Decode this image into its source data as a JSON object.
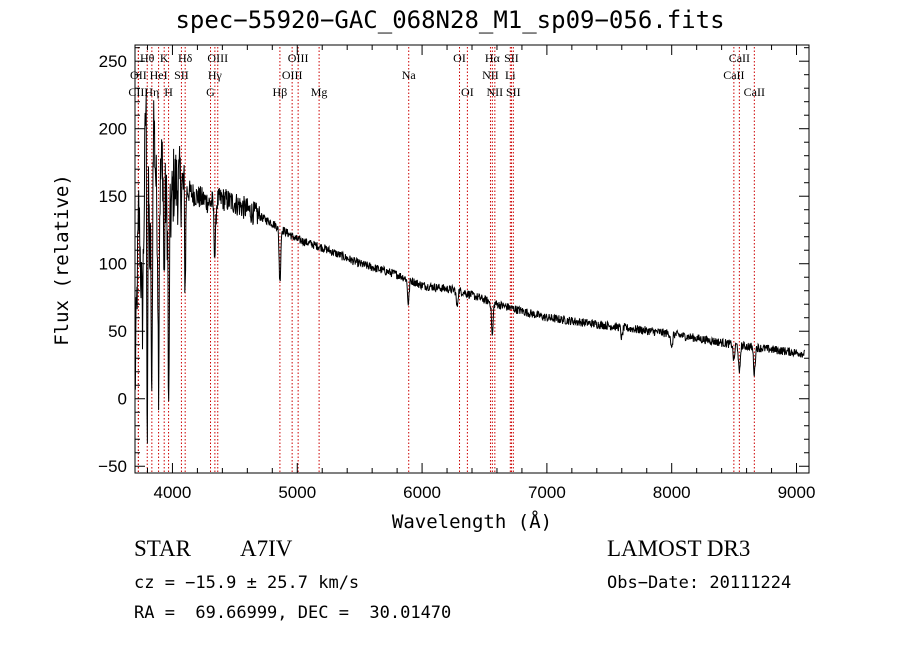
{
  "chart_data": {
    "type": "line",
    "title": "spec−55920−GAC_068N28_M1_sp09−056.fits",
    "xlabel": "Wavelength (Å)",
    "ylabel": "Flux (relative)",
    "xlim": [
      3700,
      9100
    ],
    "ylim": [
      -55,
      262
    ],
    "xticks": [
      4000,
      5000,
      6000,
      7000,
      8000,
      9000
    ],
    "yticks": [
      -50,
      0,
      50,
      100,
      150,
      200,
      250
    ],
    "xtick_labels": [
      "4000",
      "5000",
      "6000",
      "7000",
      "8000",
      "9000"
    ],
    "ytick_labels": [
      "−50",
      "0",
      "50",
      "100",
      "150",
      "200",
      "250"
    ],
    "line_color": "#000000",
    "marker_color": "#cc0000",
    "spectrum_anchor_points": [
      {
        "x": 3700,
        "y": 5
      },
      {
        "x": 3730,
        "y": 140
      },
      {
        "x": 3760,
        "y": 60
      },
      {
        "x": 3790,
        "y": 245
      },
      {
        "x": 3820,
        "y": 100
      },
      {
        "x": 3850,
        "y": 210
      },
      {
        "x": 3880,
        "y": 130
      },
      {
        "x": 3920,
        "y": 180
      },
      {
        "x": 3970,
        "y": 120
      },
      {
        "x": 4010,
        "y": 160
      },
      {
        "x": 4100,
        "y": 155
      },
      {
        "x": 4200,
        "y": 150
      },
      {
        "x": 4300,
        "y": 145
      },
      {
        "x": 4400,
        "y": 148
      },
      {
        "x": 4500,
        "y": 145
      },
      {
        "x": 4600,
        "y": 140
      },
      {
        "x": 4800,
        "y": 130
      },
      {
        "x": 5000,
        "y": 118
      },
      {
        "x": 5200,
        "y": 112
      },
      {
        "x": 5500,
        "y": 100
      },
      {
        "x": 5800,
        "y": 92
      },
      {
        "x": 6000,
        "y": 84
      },
      {
        "x": 6300,
        "y": 80
      },
      {
        "x": 6600,
        "y": 70
      },
      {
        "x": 7000,
        "y": 60
      },
      {
        "x": 7500,
        "y": 54
      },
      {
        "x": 8000,
        "y": 48
      },
      {
        "x": 8500,
        "y": 40
      },
      {
        "x": 9100,
        "y": 33
      }
    ],
    "absorption_features": [
      {
        "x": 3798,
        "depth": 230
      },
      {
        "x": 3835,
        "depth": 170
      },
      {
        "x": 3889,
        "depth": 120
      },
      {
        "x": 3933,
        "depth": 80
      },
      {
        "x": 3970,
        "depth": 140
      },
      {
        "x": 4102,
        "depth": 70
      },
      {
        "x": 4340,
        "depth": 40
      },
      {
        "x": 4861,
        "depth": 40
      },
      {
        "x": 5890,
        "depth": 18
      },
      {
        "x": 6280,
        "depth": 12
      },
      {
        "x": 6563,
        "depth": 25
      },
      {
        "x": 7600,
        "depth": 8
      },
      {
        "x": 8000,
        "depth": 12
      },
      {
        "x": 8498,
        "depth": 12
      },
      {
        "x": 8542,
        "depth": 22
      },
      {
        "x": 8662,
        "depth": 20
      }
    ],
    "line_markers": [
      {
        "label": "CIII",
        "x": 3727,
        "row": 3
      },
      {
        "label": "OII",
        "x": 3727,
        "row": 2
      },
      {
        "label": "Hθ",
        "x": 3798,
        "row": 1
      },
      {
        "label": "Hη",
        "x": 3835,
        "row": 3
      },
      {
        "label": "HeI",
        "x": 3889,
        "row": 2
      },
      {
        "label": "K",
        "x": 3934,
        "row": 1
      },
      {
        "label": "H",
        "x": 3969,
        "row": 3
      },
      {
        "label": "SII",
        "x": 4072,
        "row": 2
      },
      {
        "label": "Hδ",
        "x": 4102,
        "row": 1
      },
      {
        "label": "G",
        "x": 4305,
        "row": 3
      },
      {
        "label": "Hγ",
        "x": 4340,
        "row": 2
      },
      {
        "label": "OIII",
        "x": 4363,
        "row": 1
      },
      {
        "label": "Hβ",
        "x": 4861,
        "row": 3
      },
      {
        "label": "OIII",
        "x": 4959,
        "row": 2
      },
      {
        "label": "OIII",
        "x": 5007,
        "row": 1
      },
      {
        "label": "Mg",
        "x": 5175,
        "row": 3
      },
      {
        "label": "Na",
        "x": 5893,
        "row": 2
      },
      {
        "label": "OI",
        "x": 6300,
        "row": 1
      },
      {
        "label": "OI",
        "x": 6363,
        "row": 3
      },
      {
        "label": "NII",
        "x": 6548,
        "row": 2
      },
      {
        "label": "Hα",
        "x": 6563,
        "row": 1
      },
      {
        "label": "NII",
        "x": 6583,
        "row": 3
      },
      {
        "label": "Li",
        "x": 6707,
        "row": 2
      },
      {
        "label": "SII",
        "x": 6716,
        "row": 1
      },
      {
        "label": "SII",
        "x": 6731,
        "row": 3
      },
      {
        "label": "CaII",
        "x": 8498,
        "row": 2
      },
      {
        "label": "CaII",
        "x": 8542,
        "row": 1
      },
      {
        "label": "CaII",
        "x": 8662,
        "row": 3
      }
    ]
  },
  "info": {
    "object_class": "STAR",
    "subclass": "A7IV",
    "survey": "LAMOST DR3",
    "cz": "cz = −15.9 ± 25.7 km/s",
    "obs_date": "Obs−Date: 20111224",
    "coords": "RA =  69.66999, DEC =  30.01470"
  }
}
